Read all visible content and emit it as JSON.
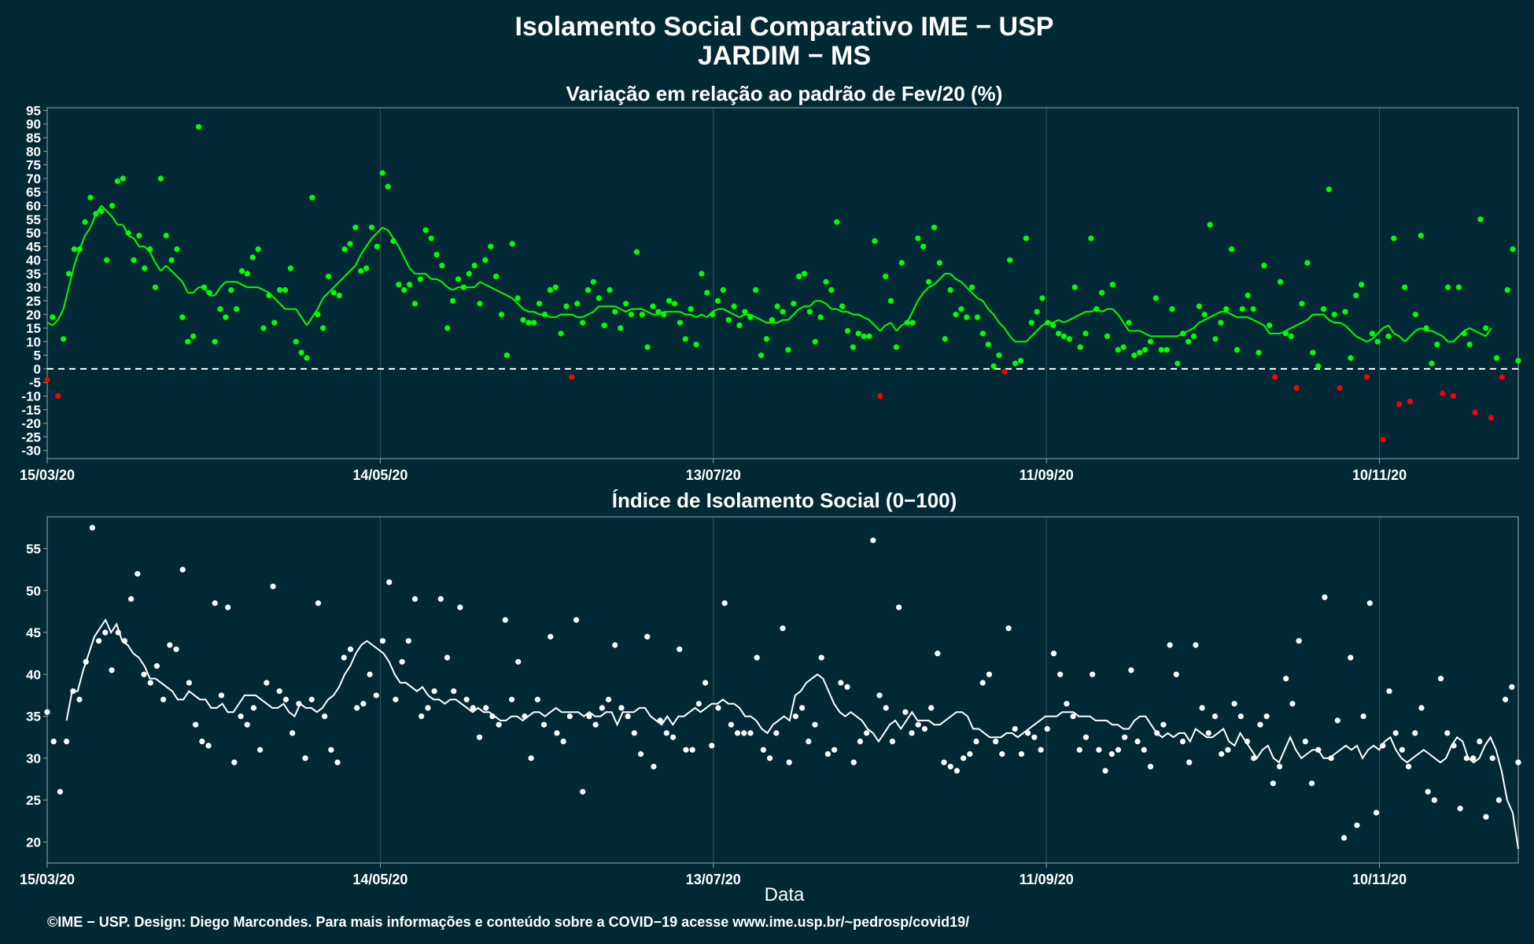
{
  "page": {
    "title_line1": "Isolamento Social Comparativo IME − USP",
    "title_line2": "JARDIM − MS",
    "footer": "©IME − USP. Design: Diego Marcondes. Para mais informações e conteúdo sobre a COVID−19 acesse www.ime.usp.br/~pedrosp/covid19/"
  },
  "colors": {
    "background": "#022935",
    "positive": "#00ff00",
    "negative": "#ff0000",
    "index": "#ffffff",
    "grid": "#34535d",
    "axis": "#9aa9ad"
  },
  "chart_data": [
    {
      "type": "scatter",
      "title": "Variação em relação ao padrão de Fev/20 (%)",
      "xlabel": "",
      "ylabel": "",
      "x_start": "15/03/20",
      "x_end": "04/12/20",
      "xlim_days": [
        0,
        265
      ],
      "x_ticks": [
        "15/03/20",
        "14/05/20",
        "13/07/20",
        "11/09/20",
        "10/11/20"
      ],
      "ylim": [
        -33,
        96
      ],
      "y_ticks": [
        95,
        90,
        85,
        80,
        75,
        70,
        65,
        60,
        55,
        50,
        45,
        40,
        35,
        30,
        25,
        20,
        15,
        10,
        5,
        0,
        -5,
        -10,
        -15,
        -20,
        -25,
        -30
      ],
      "reference_line": 0,
      "grid": true,
      "series": [
        {
          "role": "daily values",
          "values": [
            -4,
            19,
            -10,
            11,
            35,
            44,
            44,
            54,
            63,
            57,
            58,
            40,
            60,
            69,
            70,
            50,
            40,
            49,
            37,
            44,
            30,
            70,
            49,
            40,
            44,
            19,
            10,
            12,
            89,
            30,
            28,
            10,
            22,
            19,
            29,
            22,
            36,
            35,
            41,
            44,
            15,
            27,
            17,
            29,
            29,
            37,
            10,
            6,
            4,
            63,
            20,
            15,
            34,
            28,
            27,
            44,
            46,
            52,
            36,
            37,
            52,
            45,
            72,
            67,
            47,
            31,
            29,
            31,
            24,
            33,
            51,
            48,
            42,
            38,
            15,
            25,
            33,
            30,
            35,
            38,
            24,
            40,
            45,
            34,
            20,
            5,
            46,
            26,
            18,
            17,
            17,
            24,
            20,
            29,
            30,
            13,
            23,
            -3,
            24,
            17,
            29,
            32,
            26,
            16,
            29,
            21,
            15,
            24,
            20,
            43,
            20,
            8,
            23,
            21,
            20,
            25,
            24,
            17,
            11,
            22,
            9,
            35,
            28,
            20,
            25,
            29,
            18,
            23,
            16,
            21,
            19,
            29,
            5,
            11,
            18,
            23,
            21,
            7,
            24,
            34,
            35,
            21,
            10,
            19,
            32,
            29,
            54,
            23,
            14,
            8,
            13,
            12,
            12,
            47,
            -10,
            34,
            25,
            8,
            39,
            17,
            17,
            48,
            45,
            32,
            52,
            39,
            11,
            29,
            20,
            22,
            19,
            30,
            19,
            13,
            9,
            1,
            5,
            -1,
            40,
            2,
            3,
            48,
            17,
            21,
            26,
            17,
            16,
            13,
            12,
            11,
            30,
            8,
            13,
            48,
            22,
            28,
            12,
            31,
            7,
            8,
            17,
            5,
            6,
            7,
            10,
            26,
            7,
            7,
            22,
            2,
            13,
            10,
            12,
            23,
            20,
            53,
            11,
            17,
            22,
            44,
            7,
            22,
            27,
            22,
            6,
            38,
            16,
            -3,
            32,
            13,
            12,
            -7,
            24,
            39,
            6,
            1,
            22,
            66,
            20,
            -7,
            21,
            4,
            27,
            31,
            -3,
            13,
            10,
            -26,
            12,
            48,
            -13,
            30,
            -12,
            20,
            49,
            15,
            2,
            9,
            -9,
            30,
            -10,
            30,
            13,
            9,
            -16,
            55,
            15,
            -18,
            4,
            -3,
            29,
            44,
            3
          ]
        },
        {
          "role": "7-day moving average",
          "values": [
            17,
            16,
            18,
            22,
            30,
            38,
            44,
            49,
            52,
            57,
            60,
            58,
            56,
            53,
            53,
            49,
            48,
            45,
            45,
            43,
            39,
            36,
            38,
            36,
            34,
            32,
            28,
            28,
            30,
            30,
            27,
            27,
            30,
            32,
            32,
            32,
            31,
            30,
            30,
            30,
            29,
            28,
            26,
            24,
            22,
            22,
            22,
            19,
            16,
            19,
            22,
            26,
            28,
            30,
            32,
            34,
            36,
            38,
            42,
            45,
            48,
            50,
            52,
            51,
            48,
            45,
            41,
            37,
            35,
            35,
            35,
            33,
            33,
            32,
            30,
            29,
            30,
            30,
            30,
            30,
            32,
            31,
            30,
            29,
            28,
            27,
            26,
            24,
            22,
            21,
            21,
            20,
            20,
            19,
            19,
            20,
            20,
            20,
            19,
            19,
            20,
            21,
            23,
            23,
            23,
            23,
            22,
            21,
            22,
            22,
            22,
            21,
            20,
            20,
            21,
            21,
            21,
            21,
            20,
            20,
            19,
            20,
            19,
            21,
            22,
            22,
            21,
            20,
            19,
            20,
            20,
            19,
            18,
            17,
            17,
            17,
            18,
            18,
            20,
            22,
            23,
            23,
            25,
            25,
            24,
            22,
            22,
            21,
            21,
            20,
            20,
            19,
            18,
            16,
            14,
            16,
            17,
            14,
            16,
            17,
            21,
            25,
            28,
            30,
            31,
            33,
            35,
            35,
            33,
            32,
            30,
            28,
            26,
            25,
            22,
            20,
            17,
            15,
            12,
            10,
            10,
            10,
            12,
            14,
            16,
            17,
            17,
            18,
            17,
            18,
            19,
            20,
            21,
            21,
            22,
            21,
            22,
            22,
            20,
            17,
            14,
            14,
            14,
            13,
            12,
            12,
            12,
            12,
            12,
            12,
            13,
            14,
            15,
            17,
            18,
            19,
            20,
            21,
            21,
            20,
            19,
            19,
            19,
            18,
            17,
            16,
            13,
            13,
            13,
            14,
            15,
            16,
            17,
            18,
            20,
            20,
            20,
            18,
            17,
            17,
            16,
            14,
            12,
            11,
            10,
            11,
            13,
            15,
            16,
            13,
            12,
            10,
            12,
            14,
            15,
            14,
            14,
            13,
            12,
            10,
            10,
            12,
            14,
            15,
            14,
            13,
            12,
            15
          ]
        }
      ]
    },
    {
      "type": "scatter",
      "title": "Índice de Isolamento Social (0−100)",
      "xlabel": "Data",
      "ylabel": "",
      "x_start": "15/03/20",
      "x_end": "04/12/20",
      "xlim_days": [
        0,
        265
      ],
      "x_ticks": [
        "15/03/20",
        "14/05/20",
        "13/07/20",
        "11/09/20",
        "10/11/20"
      ],
      "ylim": [
        17.5,
        58.8
      ],
      "y_ticks": [
        55,
        50,
        45,
        40,
        35,
        30,
        25,
        20
      ],
      "grid": true,
      "series": [
        {
          "role": "daily values",
          "values": [
            35.5,
            32,
            26,
            32,
            38,
            37,
            41.5,
            57.5,
            44,
            45,
            40.5,
            45,
            44,
            49,
            52,
            40,
            39,
            41,
            37,
            43.5,
            43,
            52.5,
            39,
            34,
            32,
            31.5,
            48.5,
            37.5,
            48,
            29.5,
            35,
            34,
            36,
            31,
            39,
            50.5,
            38,
            37,
            33,
            36.5,
            30,
            37,
            48.5,
            35,
            31,
            29.5,
            42,
            43,
            36,
            36.5,
            40,
            37.5,
            44,
            51,
            37,
            41.5,
            44,
            49,
            35,
            36,
            38,
            49,
            42,
            38,
            48,
            37,
            36,
            32.5,
            36,
            35,
            34,
            46.5,
            37,
            41.5,
            35,
            30,
            37,
            34,
            44.5,
            33,
            32,
            35,
            46.5,
            26,
            35,
            34,
            36,
            37,
            43.5,
            36,
            35,
            33,
            30.5,
            44.5,
            29,
            34.5,
            33,
            32.5,
            43,
            31,
            31,
            36.5,
            39,
            31.5,
            36,
            48.5,
            34,
            33,
            33,
            33,
            42,
            31,
            30,
            33,
            45.5,
            29.5,
            35,
            36,
            32,
            34,
            42,
            30.5,
            31,
            39,
            38.5,
            29.5,
            32,
            33,
            56,
            37.5,
            36,
            32,
            48,
            35.5,
            33,
            34,
            33.5,
            36,
            42.5,
            29.5,
            29,
            28.5,
            30,
            30.5,
            32,
            39,
            40,
            32,
            30.5,
            45.5,
            33.5,
            30.5,
            33,
            32.5,
            31,
            33.5,
            42.5,
            40,
            36.5,
            35,
            31,
            32.5,
            40,
            31,
            28.5,
            30.5,
            31,
            32.5,
            40.5,
            32,
            31,
            29,
            33,
            34,
            43.5,
            40,
            32,
            29.5,
            43.5,
            36,
            33,
            35,
            30.5,
            31,
            36.5,
            35,
            32,
            30,
            34,
            35,
            27,
            29,
            39.5,
            36.5,
            44,
            32,
            27,
            31,
            49.2,
            30,
            34.5,
            20.5,
            42,
            22,
            35,
            48.5,
            23.5,
            31.5,
            38,
            33,
            31,
            29,
            33,
            36,
            26,
            25,
            39.5,
            33,
            31.5,
            24,
            30,
            30,
            32,
            23,
            30,
            25,
            37,
            38.5,
            29.5
          ]
        },
        {
          "role": "7-day moving average",
          "values": [
            34.5,
            38,
            38,
            40.5,
            42.5,
            44.5,
            45.5,
            46.5,
            45,
            46,
            44,
            43.5,
            42.5,
            42,
            41,
            39.5,
            39.5,
            39,
            38.5,
            38,
            37,
            37,
            38,
            37.5,
            37,
            37,
            36,
            36,
            36.5,
            35.5,
            35.5,
            36.5,
            37.5,
            37.5,
            37.5,
            37,
            36.5,
            36,
            36,
            36.5,
            35.5,
            35,
            36.5,
            36,
            36,
            35.5,
            36,
            37,
            37.5,
            38.5,
            40,
            41,
            42.5,
            43.5,
            44,
            43.5,
            43,
            42.5,
            41.5,
            40,
            39,
            39,
            38.5,
            38,
            38.5,
            37.5,
            37,
            37,
            36.5,
            37,
            37,
            36.5,
            36,
            35.5,
            36,
            35.5,
            35.5,
            35,
            34.5,
            34.5,
            35,
            35,
            34.5,
            35,
            35.5,
            35.5,
            35,
            35.5,
            36,
            35.5,
            35.5,
            35.5,
            35.5,
            35,
            35.5,
            35,
            35,
            35.5,
            35.5,
            34,
            35.5,
            35.5,
            35.5,
            36,
            36,
            35,
            34.5,
            34,
            35,
            34,
            35,
            35,
            35.5,
            36,
            35.5,
            36,
            36.5,
            36.5,
            37,
            36.5,
            36.5,
            36,
            35,
            35,
            34.5,
            33.5,
            33,
            34,
            34.5,
            35,
            34.5,
            37.5,
            38,
            39,
            39.5,
            40,
            39.5,
            38,
            36.5,
            35.5,
            35,
            35.5,
            35,
            34.5,
            33.5,
            33,
            32,
            33,
            34,
            34.5,
            33.5,
            34.5,
            35.5,
            34.5,
            34.5,
            34.5,
            34,
            34,
            34.5,
            35,
            35.5,
            35.5,
            35,
            33.5,
            33.5,
            33,
            32.5,
            32.5,
            32.5,
            33,
            33,
            32.5,
            33,
            33.5,
            34,
            34.5,
            35,
            35,
            35,
            35.5,
            35.5,
            35.5,
            35,
            35,
            35,
            34.5,
            34.5,
            34.5,
            34,
            34,
            33.5,
            33.5,
            34.5,
            35,
            35,
            34,
            33,
            32.5,
            33,
            32.5,
            33,
            33,
            32,
            33.5,
            33,
            32.5,
            32.5,
            33,
            33.5,
            32,
            31.5,
            33,
            32,
            31,
            30,
            31,
            31.5,
            30,
            29.5,
            31,
            32.5,
            31,
            30,
            30.5,
            31,
            31,
            30,
            30,
            30.5,
            31,
            31.5,
            31,
            31.5,
            30,
            31,
            31.5,
            31,
            32,
            32.5,
            31,
            30,
            29.5,
            30,
            30.5,
            31,
            30.5,
            30,
            29.5,
            30,
            31.5,
            32.5,
            32,
            30,
            29.5,
            30,
            31.5,
            32.5,
            31,
            28.5,
            25,
            23.5,
            19.2
          ]
        }
      ]
    }
  ]
}
